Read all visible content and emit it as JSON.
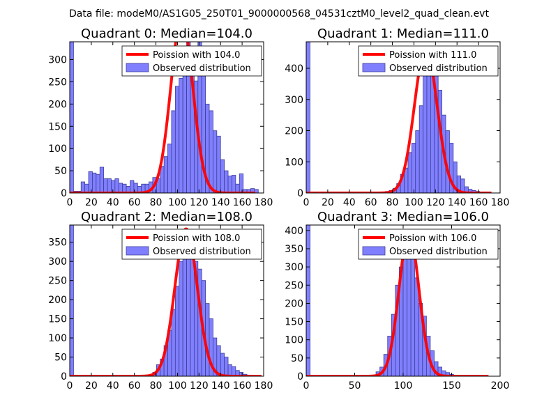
{
  "figure_title": "Data file: modeM0/AS1G05_250T01_9000000568_04531cztM0_level2_quad_clean.evt",
  "colors": {
    "fit_line": "#ff0000",
    "bar_fill": "#8080ff",
    "bar_edge": "#3d3d99",
    "axes": "#000000"
  },
  "chart_data": [
    {
      "type": "bar",
      "title": "Quadrant 0: Median=104.0",
      "xlim": [
        0,
        180
      ],
      "ylim": [
        0,
        340
      ],
      "xticks": [
        0,
        20,
        40,
        60,
        80,
        100,
        120,
        140,
        160,
        180
      ],
      "yticks": [
        0,
        50,
        100,
        150,
        200,
        250,
        300
      ],
      "bin_start": 0,
      "bin_width": 3.5,
      "counts": [
        340,
        4,
        4,
        25,
        20,
        48,
        45,
        42,
        58,
        32,
        32,
        28,
        32,
        22,
        20,
        15,
        28,
        22,
        15,
        20,
        20,
        25,
        35,
        32,
        60,
        82,
        110,
        185,
        240,
        258,
        320,
        395,
        285,
        252,
        340,
        310,
        200,
        185,
        140,
        128,
        75,
        50,
        38,
        40,
        20,
        43,
        8,
        8,
        10,
        8,
        0
      ],
      "legend": [
        "Poission with 104.0",
        "Observed distribution"
      ],
      "fit_label": "Poission with 104.0",
      "observed_label": "Observed distribution",
      "poisson_mean": 104.0,
      "poisson_peak": 395,
      "poisson_sigma": 10.2,
      "fit_xrange": [
        0,
        172
      ],
      "legend_loc": "upper right"
    },
    {
      "type": "bar",
      "title": "Quadrant 1: Median=111.0",
      "xlim": [
        0,
        180
      ],
      "ylim": [
        0,
        485
      ],
      "xticks": [
        0,
        20,
        40,
        60,
        80,
        100,
        120,
        140,
        160,
        180
      ],
      "yticks": [
        0,
        100,
        200,
        300,
        400
      ],
      "bin_start": 0,
      "bin_width": 3.5,
      "counts": [
        485,
        2,
        0,
        0,
        0,
        0,
        0,
        0,
        0,
        0,
        0,
        0,
        0,
        0,
        0,
        0,
        0,
        0,
        2,
        2,
        3,
        5,
        8,
        15,
        30,
        60,
        80,
        130,
        160,
        200,
        280,
        380,
        420,
        460,
        400,
        330,
        250,
        200,
        160,
        100,
        55,
        45,
        20,
        12,
        8,
        5,
        3,
        2,
        1,
        0
      ],
      "legend": [
        "Poission with 111.0",
        "Observed distribution"
      ],
      "fit_label": "Poission with 111.0",
      "observed_label": "Observed distribution",
      "poisson_mean": 111.0,
      "poisson_peak": 465,
      "poisson_sigma": 10.5,
      "fit_xrange": [
        0,
        172
      ],
      "legend_loc": "upper right"
    },
    {
      "type": "bar",
      "title": "Quadrant 2: Median=108.0",
      "xlim": [
        0,
        180
      ],
      "ylim": [
        0,
        395
      ],
      "xticks": [
        0,
        20,
        40,
        60,
        80,
        100,
        120,
        140,
        160,
        180
      ],
      "yticks": [
        0,
        50,
        100,
        150,
        200,
        250,
        300,
        350
      ],
      "bin_start": 0,
      "bin_width": 3.5,
      "counts": [
        395,
        2,
        0,
        0,
        0,
        0,
        0,
        0,
        0,
        0,
        0,
        0,
        0,
        0,
        0,
        0,
        0,
        0,
        0,
        0,
        0,
        3,
        10,
        30,
        45,
        80,
        120,
        175,
        235,
        300,
        330,
        380,
        330,
        300,
        280,
        250,
        190,
        150,
        100,
        80,
        60,
        50,
        30,
        25,
        15,
        10,
        5,
        3,
        2,
        0
      ],
      "legend": [
        "Poission with 108.0",
        "Observed distribution"
      ],
      "fit_label": "Poission with 108.0",
      "observed_label": "Observed distribution",
      "poisson_mean": 108.0,
      "poisson_peak": 385,
      "poisson_sigma": 10.4,
      "fit_xrange": [
        0,
        178
      ],
      "legend_loc": "upper right"
    },
    {
      "type": "bar",
      "title": "Quadrant 3: Median=106.0",
      "xlim": [
        0,
        200
      ],
      "ylim": [
        0,
        415
      ],
      "xticks": [
        0,
        50,
        100,
        150,
        200
      ],
      "yticks": [
        0,
        50,
        100,
        150,
        200,
        250,
        300,
        350,
        400
      ],
      "bin_start": 0,
      "bin_width": 4,
      "counts": [
        415,
        2,
        0,
        0,
        0,
        0,
        0,
        0,
        0,
        0,
        0,
        0,
        0,
        0,
        0,
        0,
        0,
        2,
        12,
        25,
        60,
        110,
        170,
        250,
        300,
        335,
        380,
        345,
        270,
        200,
        165,
        110,
        70,
        40,
        25,
        15,
        10,
        5,
        2,
        1,
        0,
        0,
        0,
        0,
        0,
        0,
        0,
        0,
        0,
        0
      ],
      "legend": [
        "Poission with 106.0",
        "Observed distribution"
      ],
      "fit_label": "Poission with 106.0",
      "observed_label": "Observed distribution",
      "poisson_mean": 106.0,
      "poisson_peak": 395,
      "poisson_sigma": 10.3,
      "fit_xrange": [
        0,
        188
      ],
      "legend_loc": "upper right"
    }
  ]
}
